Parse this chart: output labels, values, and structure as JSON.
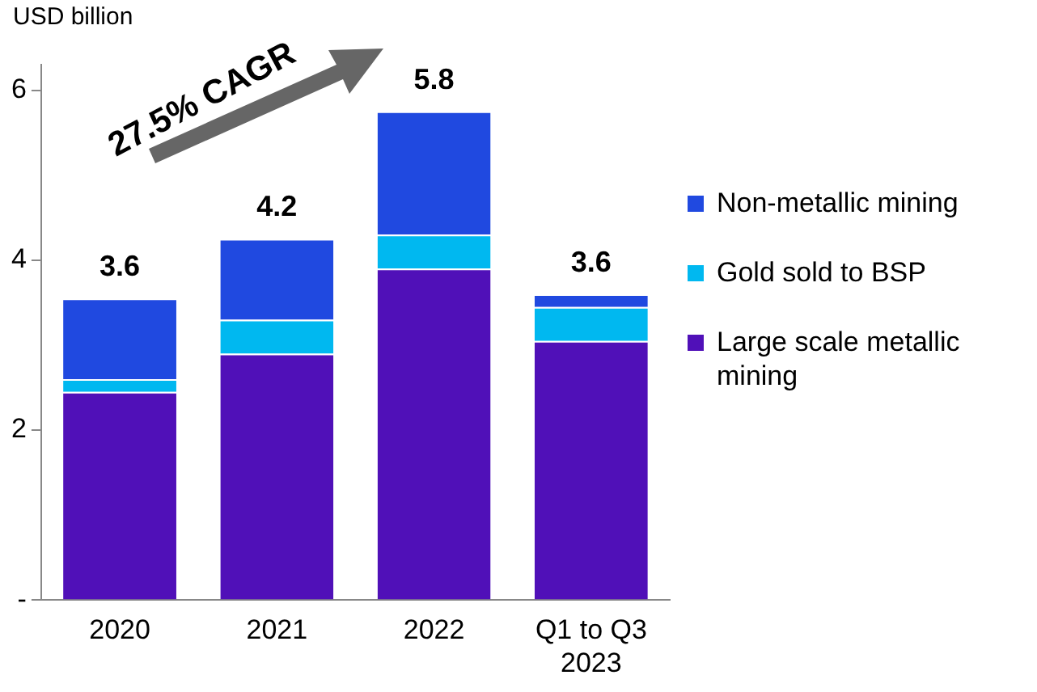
{
  "chart_data": {
    "type": "bar",
    "ylabel": "USD billion",
    "categories": [
      "2020",
      "2021",
      "2022",
      "Q1 to Q3 2023"
    ],
    "stacked": true,
    "series": [
      {
        "name": "Large scale metallic mining",
        "color": "#5010b8",
        "values": [
          2.45,
          2.9,
          3.9,
          3.05
        ]
      },
      {
        "name": "Gold sold to BSP",
        "color": "#00b8f0",
        "values": [
          0.15,
          0.4,
          0.4,
          0.4
        ]
      },
      {
        "name": "Non-metallic mining",
        "color": "#2049e0",
        "values": [
          0.95,
          0.95,
          1.45,
          0.15
        ]
      }
    ],
    "ylim": [
      0,
      6.3
    ],
    "yticks": [
      {
        "value": 0,
        "label": "-"
      },
      2,
      4,
      6
    ],
    "grid": false,
    "legend": "right",
    "totals": [
      "3.6",
      "4.2",
      "5.8",
      "3.6"
    ],
    "annotations": [
      "27.5% CAGR"
    ]
  }
}
